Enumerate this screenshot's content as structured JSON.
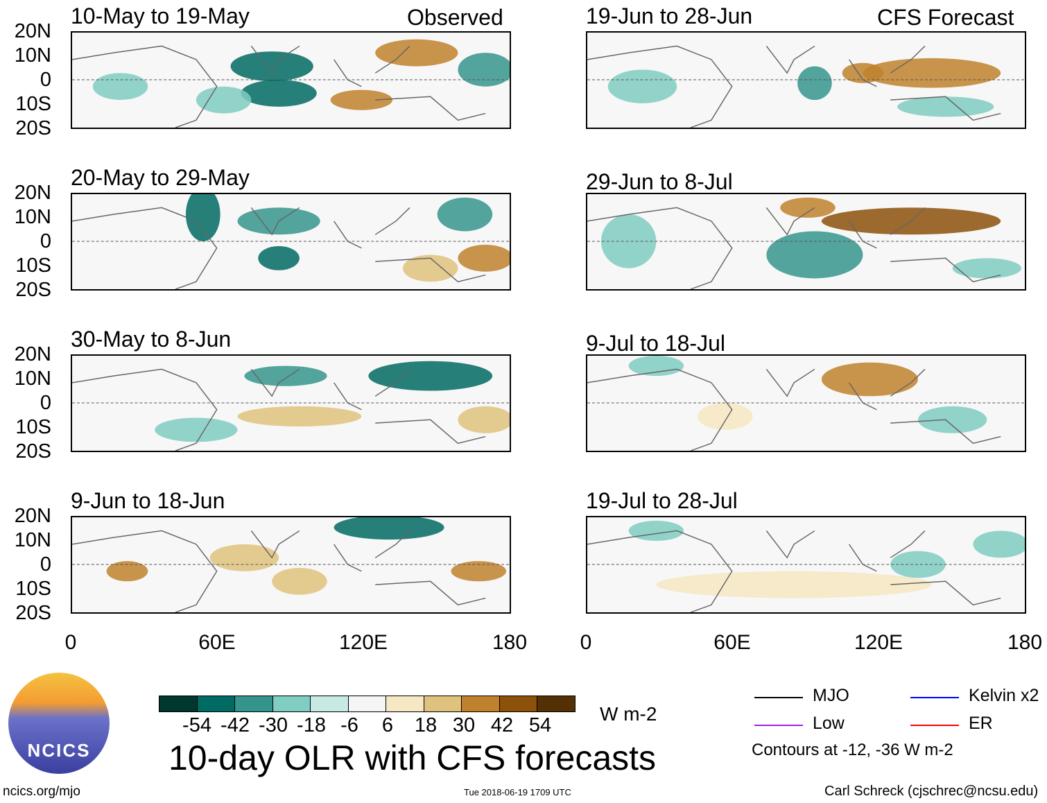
{
  "panels": [
    {
      "title": "10-May to 19-May",
      "tag": "Observed"
    },
    {
      "title": "20-May to 29-May"
    },
    {
      "title": "30-May to 8-Jun"
    },
    {
      "title": "9-Jun to 18-Jun"
    },
    {
      "title": "19-Jun to 28-Jun",
      "tag": "CFS Forecast"
    },
    {
      "title": "29-Jun to 8-Jul"
    },
    {
      "title": "9-Jul to 18-Jul"
    },
    {
      "title": "19-Jul to 28-Jul"
    }
  ],
  "lat_labels": [
    "20N",
    "10N",
    "0",
    "10S",
    "20S"
  ],
  "lon_labels": [
    "0",
    "60E",
    "120E",
    "180"
  ],
  "colorbar": {
    "colors": [
      "#00382f",
      "#016b63",
      "#35958d",
      "#80cdc1",
      "#c7eae5",
      "#f5f5f5",
      "#f6e8c3",
      "#dfc27d",
      "#bf812d",
      "#8c510a",
      "#543005"
    ],
    "labels": [
      "-54",
      "-42",
      "-30",
      "-18",
      "-6",
      "6",
      "18",
      "30",
      "42",
      "54"
    ],
    "units": "W m-2"
  },
  "title": "10-day OLR with CFS forecasts",
  "legend": {
    "items": [
      {
        "label": "MJO",
        "color": "#000000"
      },
      {
        "label": "Kelvin x2",
        "color": "#0000ff"
      },
      {
        "label": "Low",
        "color": "#a020f0"
      },
      {
        "label": "ER",
        "color": "#ff0000"
      }
    ],
    "note": "Contours at -12, -36 W m-2"
  },
  "logo_text": "NCICS",
  "footer": {
    "url": "ncics.org/mjo",
    "timestamp": "Tue 2018-06-19 1709 UTC",
    "credit": "Carl Schreck (cjschrec@ncsu.edu)"
  }
}
